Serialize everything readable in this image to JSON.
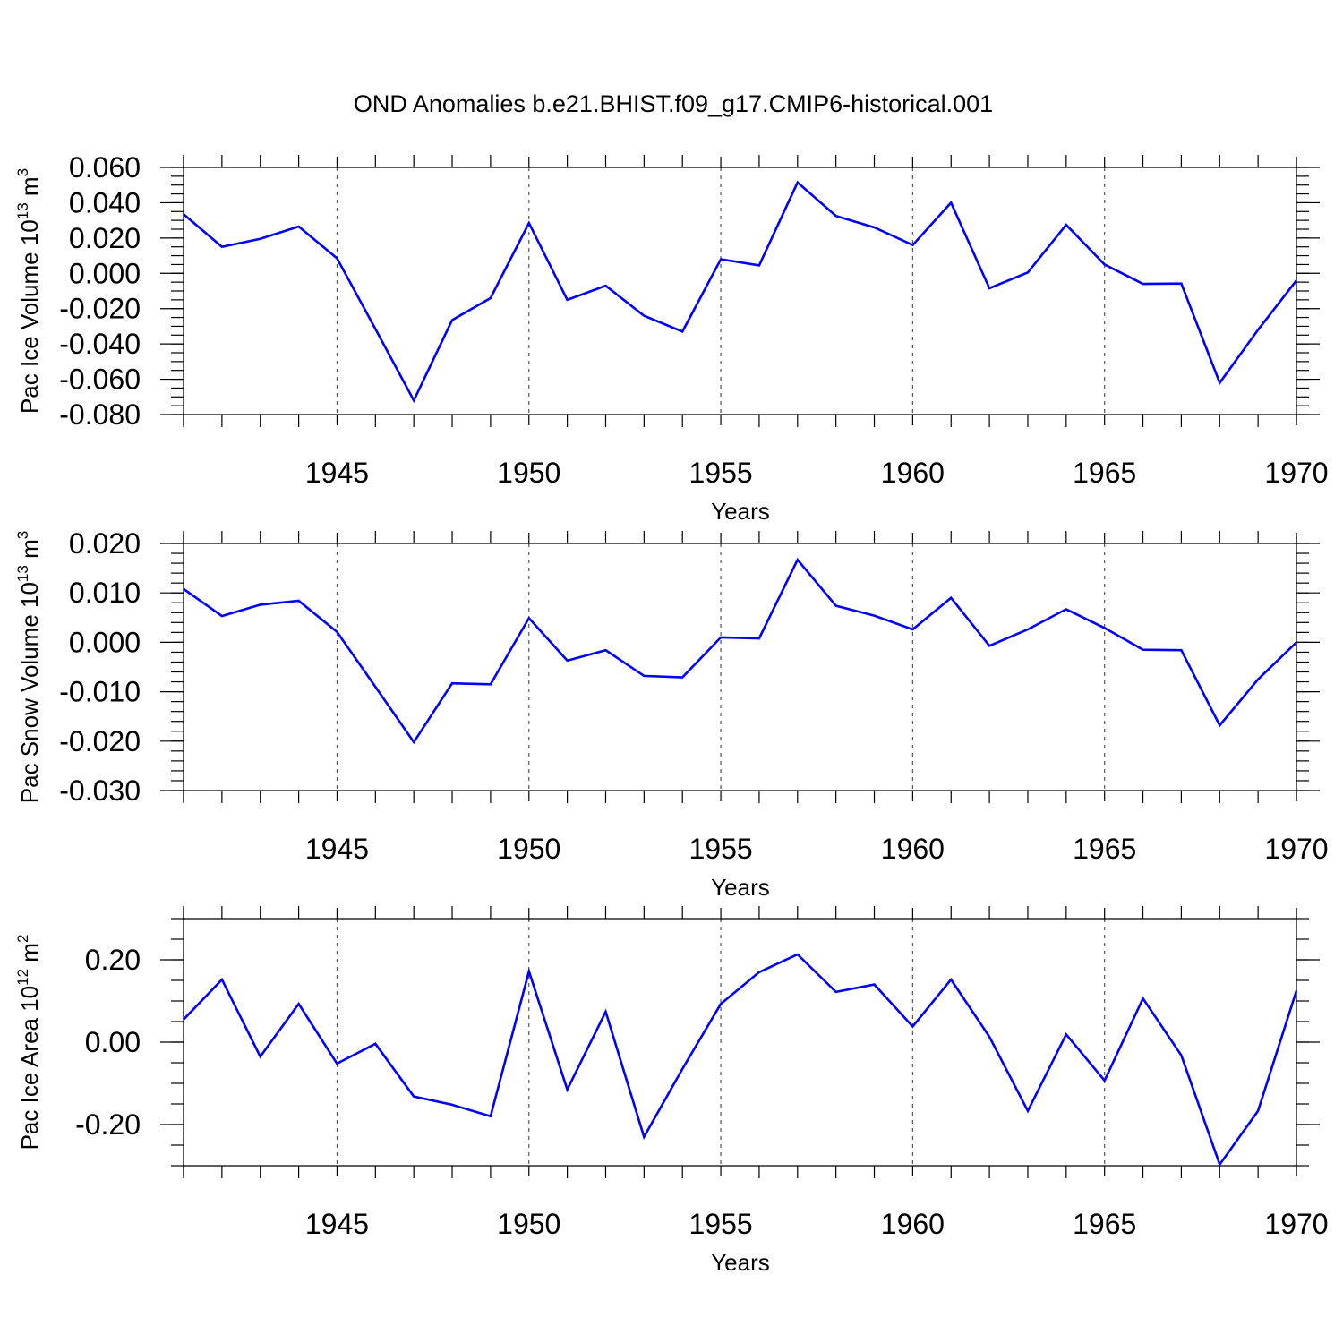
{
  "title": "OND Anomalies b.e21.BHIST.f09_g17.CMIP6-historical.001",
  "chart_data": [
    {
      "type": "line",
      "name": "pac-ice-volume",
      "ylabel": "Pac Ice Volume 10",
      "ylabel_exp": "13",
      "ylabel_unit": " m",
      "ylabel_unit_exp": "3",
      "xlabel": "Years",
      "xlim": [
        1941,
        1970
      ],
      "ylim": [
        -0.08,
        0.06
      ],
      "yticks": [
        {
          "v": 0.06,
          "label": "0.060"
        },
        {
          "v": 0.04,
          "label": "0.040"
        },
        {
          "v": 0.02,
          "label": "0.020"
        },
        {
          "v": 0.0,
          "label": "0.000"
        },
        {
          "v": -0.02,
          "label": "-0.020"
        },
        {
          "v": -0.04,
          "label": "-0.040"
        },
        {
          "v": -0.06,
          "label": "-0.060"
        },
        {
          "v": -0.08,
          "label": "-0.080"
        }
      ],
      "yminor_step": 0.005,
      "x": [
        1941,
        1942,
        1943,
        1944,
        1945,
        1946,
        1947,
        1948,
        1949,
        1950,
        1951,
        1952,
        1953,
        1954,
        1955,
        1956,
        1957,
        1958,
        1959,
        1960,
        1961,
        1962,
        1963,
        1964,
        1965,
        1966,
        1967,
        1968,
        1969,
        1970
      ],
      "values": [
        0.0335,
        0.015,
        0.0195,
        0.0265,
        0.0085,
        -0.0315,
        -0.072,
        -0.0265,
        -0.014,
        0.0285,
        -0.015,
        -0.007,
        -0.024,
        -0.033,
        0.008,
        0.0045,
        0.0515,
        0.0325,
        0.026,
        0.016,
        0.04,
        -0.0085,
        0.0005,
        0.0275,
        0.005,
        -0.006,
        -0.0058,
        -0.062,
        -0.032,
        -0.004
      ]
    },
    {
      "type": "line",
      "name": "pac-snow-volume",
      "ylabel": "Pac Snow Volume 10",
      "ylabel_exp": "13",
      "ylabel_unit": " m",
      "ylabel_unit_exp": "3",
      "xlabel": "Years",
      "xlim": [
        1941,
        1970
      ],
      "ylim": [
        -0.03,
        0.02
      ],
      "yticks": [
        {
          "v": 0.02,
          "label": "0.020"
        },
        {
          "v": 0.01,
          "label": "0.010"
        },
        {
          "v": 0.0,
          "label": "0.000"
        },
        {
          "v": -0.01,
          "label": "-0.010"
        },
        {
          "v": -0.02,
          "label": "-0.020"
        },
        {
          "v": -0.03,
          "label": "-0.030"
        }
      ],
      "yminor_step": 0.002,
      "x": [
        1941,
        1942,
        1943,
        1944,
        1945,
        1946,
        1947,
        1948,
        1949,
        1950,
        1951,
        1952,
        1953,
        1954,
        1955,
        1956,
        1957,
        1958,
        1959,
        1960,
        1961,
        1962,
        1963,
        1964,
        1965,
        1966,
        1967,
        1968,
        1969,
        1970
      ],
      "values": [
        0.0108,
        0.0053,
        0.0076,
        0.0084,
        0.0021,
        -0.009,
        -0.0202,
        -0.0083,
        -0.0085,
        0.0049,
        -0.0037,
        -0.0016,
        -0.0068,
        -0.0071,
        0.001,
        0.0008,
        0.0167,
        0.0074,
        0.0054,
        0.0026,
        0.009,
        -0.0007,
        0.0026,
        0.0067,
        0.0029,
        -0.0015,
        -0.0016,
        -0.0168,
        -0.0075,
        0.0
      ]
    },
    {
      "type": "line",
      "name": "pac-ice-area",
      "ylabel": "Pac Ice Area 10",
      "ylabel_exp": "12",
      "ylabel_unit": " m",
      "ylabel_unit_exp": "2",
      "xlabel": "Years",
      "xlim": [
        1941,
        1970
      ],
      "ylim": [
        -0.3,
        0.3
      ],
      "yticks": [
        {
          "v": 0.2,
          "label": "0.20"
        },
        {
          "v": 0.0,
          "label": "0.00"
        },
        {
          "v": -0.2,
          "label": "-0.20"
        }
      ],
      "yminor_step": 0.05,
      "x": [
        1941,
        1942,
        1943,
        1944,
        1945,
        1946,
        1947,
        1948,
        1949,
        1950,
        1951,
        1952,
        1953,
        1954,
        1955,
        1956,
        1957,
        1958,
        1959,
        1960,
        1961,
        1962,
        1963,
        1964,
        1965,
        1966,
        1967,
        1968,
        1969,
        1970
      ],
      "values": [
        0.055,
        0.152,
        -0.035,
        0.093,
        -0.052,
        -0.004,
        -0.132,
        -0.152,
        -0.18,
        0.172,
        -0.115,
        0.074,
        -0.23,
        -0.065,
        0.093,
        0.17,
        0.213,
        0.122,
        0.14,
        0.038,
        0.152,
        0.013,
        -0.167,
        0.019,
        -0.093,
        0.106,
        -0.032,
        -0.297,
        -0.167,
        0.125
      ]
    }
  ],
  "xticks": [
    {
      "v": 1945,
      "label": "1945"
    },
    {
      "v": 1950,
      "label": "1950"
    },
    {
      "v": 1955,
      "label": "1955"
    },
    {
      "v": 1960,
      "label": "1960"
    },
    {
      "v": 1965,
      "label": "1965"
    },
    {
      "v": 1970,
      "label": "1970"
    }
  ],
  "colors": {
    "series": "#0000ff",
    "axis": "#000000",
    "grid": "#555555"
  }
}
